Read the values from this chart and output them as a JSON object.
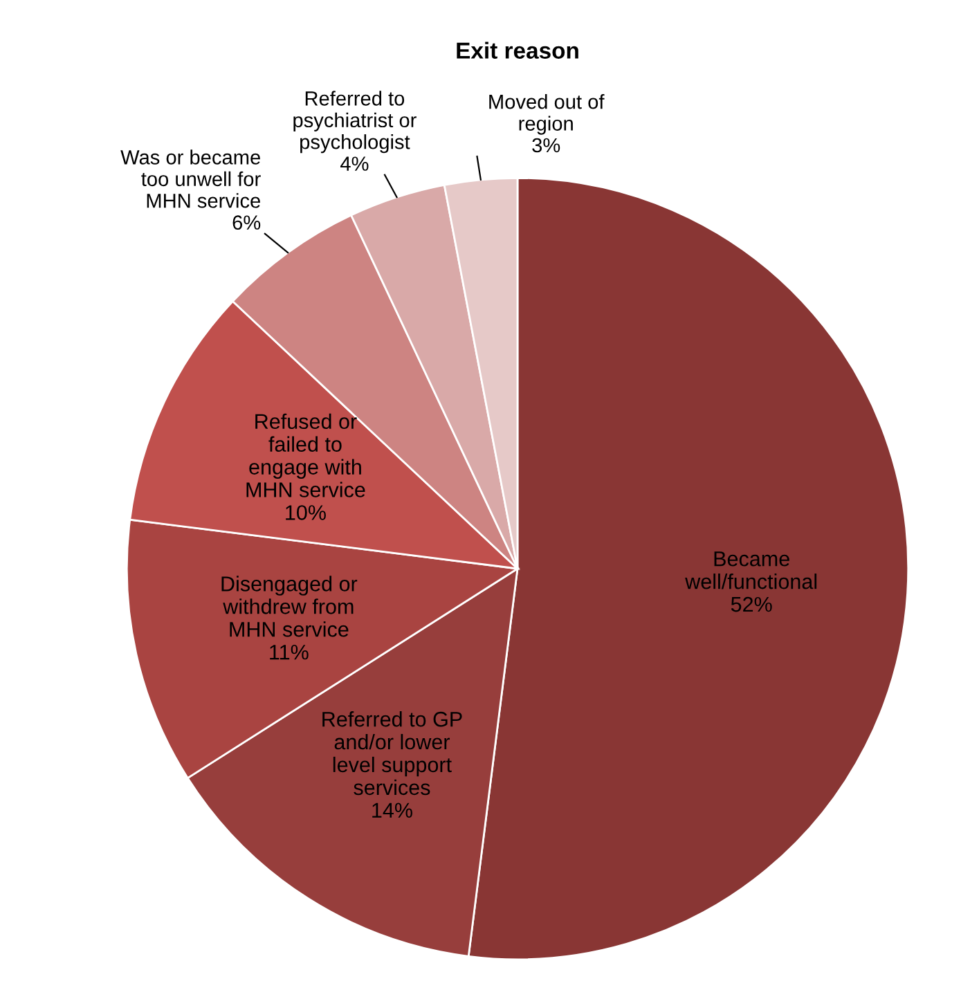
{
  "chart_data": {
    "type": "pie",
    "title": "Exit reason",
    "categories": [
      "Became\nwell/functional",
      "Referred to GP\nand/or lower\nlevel support\nservices",
      "Disengaged or\nwithdrew from\nMHN service",
      "Refused or\nfailed to\nengage with\nMHN service",
      "Was or became\ntoo unwell for\nMHN service",
      "Referred to\npsychiatrist or\npsychologist",
      "Moved out of\nregion"
    ],
    "values": [
      52,
      14,
      11,
      10,
      6,
      4,
      3
    ],
    "value_labels": [
      "52%",
      "14%",
      "11%",
      "10%",
      "6%",
      "4%",
      "3%"
    ],
    "colors": [
      "#893634",
      "#973e3c",
      "#a94441",
      "#c0504d",
      "#cd8482",
      "#d9a9a8",
      "#e6c9c8"
    ],
    "legend": false
  }
}
